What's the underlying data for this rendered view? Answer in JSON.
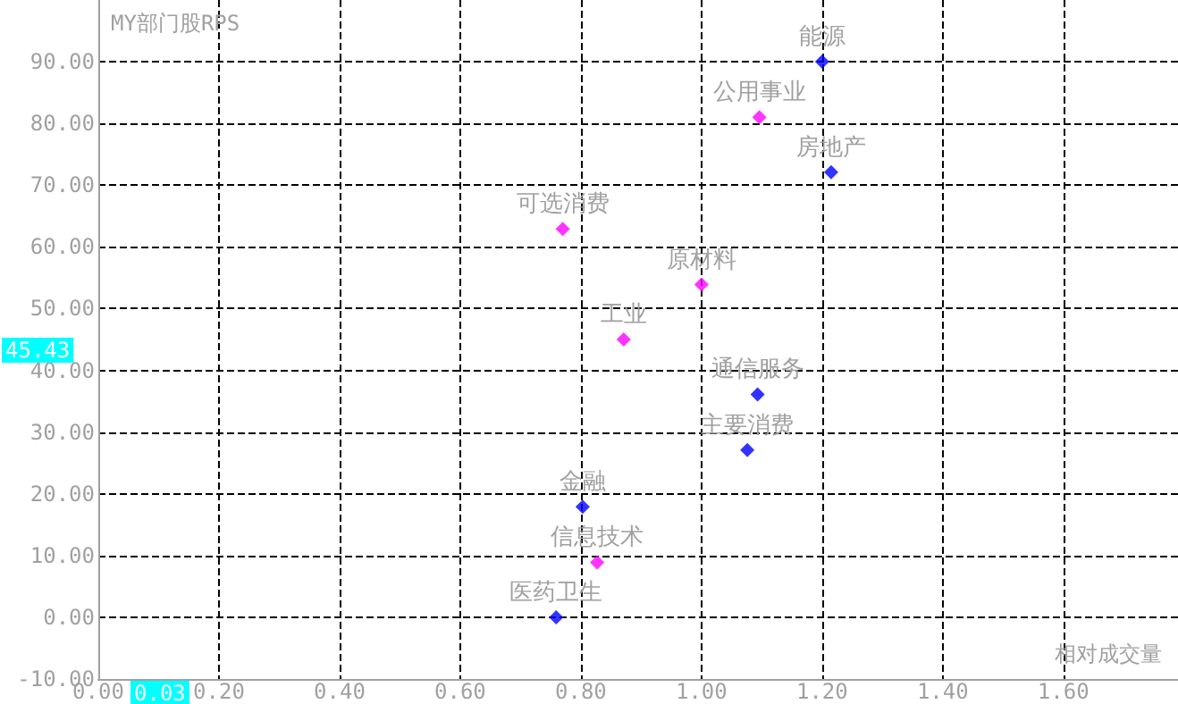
{
  "chart_data": {
    "type": "scatter",
    "title": "MY部门股RPS",
    "xlabel": "相对成交量",
    "series": [
      {
        "color": "#0000ff",
        "x": [
          1.2,
          1.215,
          1.093,
          1.076,
          0.803,
          0.759
        ],
        "values": [
          90,
          72.1,
          36.1,
          27.1,
          17.9,
          0
        ]
      },
      {
        "color": "#ff00ff",
        "x": [
          1.096,
          0.77,
          1.0,
          0.871,
          0.827
        ],
        "values": [
          81.0,
          62.9,
          53.9,
          45.0,
          8.9
        ]
      }
    ],
    "annotations": [
      {
        "text": "能源",
        "x": 1.2,
        "y": 90
      },
      {
        "text": "房地产",
        "x": 1.215,
        "y": 72.1
      },
      {
        "text": "通信服务",
        "x": 1.093,
        "y": 36.1
      },
      {
        "text": "主要消费",
        "x": 1.076,
        "y": 27.1
      },
      {
        "text": "金融",
        "x": 0.803,
        "y": 17.9
      },
      {
        "text": "医药卫生",
        "x": 0.759,
        "y": 0
      },
      {
        "text": "公用事业",
        "x": 1.096,
        "y": 81.0
      },
      {
        "text": "可选消费",
        "x": 0.77,
        "y": 62.9
      },
      {
        "text": "原材料",
        "x": 1.0,
        "y": 53.9
      },
      {
        "text": "工业",
        "x": 0.871,
        "y": 45.0
      },
      {
        "text": "信息技术",
        "x": 0.827,
        "y": 8.9
      },
      "45.43",
      "0.03"
    ],
    "xlim": [
      0,
      1.79
    ],
    "ylim": [
      -10,
      100
    ],
    "xticks": [
      {
        "value": 0,
        "label": "0.00"
      },
      {
        "value": 0.2,
        "label": "0.20"
      },
      {
        "value": 0.4,
        "label": "0.40"
      },
      {
        "value": 0.6,
        "label": "0.60"
      },
      {
        "value": 0.8,
        "label": "0.80"
      },
      {
        "value": 1.0,
        "label": "1.00"
      },
      {
        "value": 1.2,
        "label": "1.20"
      },
      {
        "value": 1.4,
        "label": "1.40"
      },
      {
        "value": 1.6,
        "label": "1.60"
      }
    ],
    "yticks": [
      {
        "value": -10,
        "label": "-10.00"
      },
      {
        "value": 0,
        "label": "0.00"
      },
      {
        "value": 10,
        "label": "10.00"
      },
      {
        "value": 20,
        "label": "20.00"
      },
      {
        "value": 30,
        "label": "30.00"
      },
      {
        "value": 40,
        "label": "40.00"
      },
      {
        "value": 50,
        "label": "50.00"
      },
      {
        "value": 60,
        "label": "60.00"
      },
      {
        "value": 70,
        "label": "70.00"
      },
      {
        "value": 80,
        "label": "80.00"
      },
      {
        "value": 90,
        "label": "90.00"
      }
    ],
    "grid": true,
    "marker": "diamond"
  }
}
